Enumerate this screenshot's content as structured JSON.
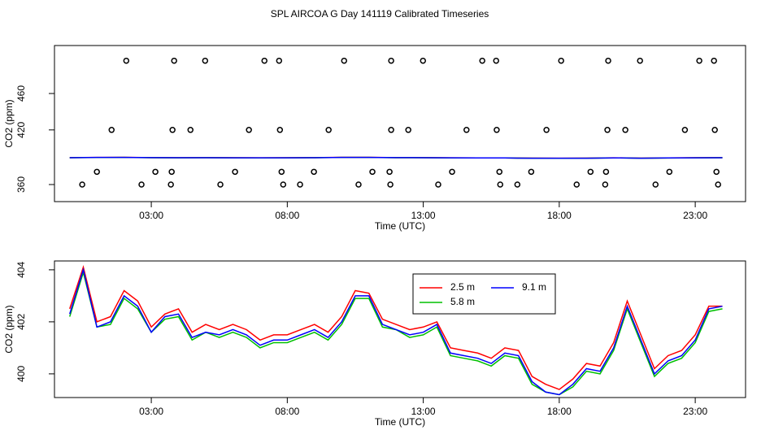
{
  "title": "SPL AIRCOA G  Day 141119  Calibrated Timeseries",
  "chart_data": [
    {
      "type": "line",
      "xlabel": "Time (UTC)",
      "ylabel": "CO2 (ppm)",
      "xlim": [
        -0.56,
        24.85
      ],
      "ylim": [
        341.25,
        512.7
      ],
      "xticks": [
        {
          "value": 3,
          "label": "03:00"
        },
        {
          "value": 8,
          "label": "08:00"
        },
        {
          "value": 13,
          "label": "13:00"
        },
        {
          "value": 18,
          "label": "18:00"
        },
        {
          "value": 23,
          "label": "23:00"
        }
      ],
      "yticks": [
        360,
        420,
        460
      ],
      "x": [
        0,
        1,
        2,
        3,
        4,
        5,
        6,
        7,
        8,
        9,
        10,
        11,
        12,
        13,
        14,
        15,
        16,
        17,
        18,
        19,
        20,
        21,
        22,
        23,
        24
      ],
      "series": [
        {
          "color": "#ff0000",
          "values": [
            389.6,
            389.8,
            389.9,
            389.6,
            389.5,
            389.6,
            389.5,
            389.4,
            389.5,
            389.6,
            389.9,
            389.9,
            389.6,
            389.6,
            389.4,
            389.3,
            389.3,
            389.0,
            388.9,
            389.0,
            389.4,
            389.0,
            389.2,
            389.5,
            389.6
          ]
        },
        {
          "color": "#00c000",
          "values": [
            389.5,
            389.7,
            389.8,
            389.5,
            389.4,
            389.5,
            389.4,
            389.3,
            389.4,
            389.5,
            389.8,
            389.8,
            389.5,
            389.5,
            389.3,
            389.2,
            389.2,
            388.9,
            388.8,
            388.9,
            389.3,
            388.9,
            389.1,
            389.4,
            389.5
          ]
        },
        {
          "color": "#0000ff",
          "values": [
            389.5,
            389.8,
            389.8,
            389.6,
            389.5,
            389.5,
            389.4,
            389.4,
            389.4,
            389.5,
            389.8,
            389.8,
            389.6,
            389.5,
            389.4,
            389.2,
            389.2,
            388.9,
            388.9,
            388.9,
            389.3,
            388.9,
            389.2,
            389.4,
            389.5
          ]
        },
        {
          "style": "points",
          "color": "#000000",
          "x": [
            2.08,
            3.84,
            4.98,
            7.16,
            7.7,
            10.09,
            11.82,
            12.99,
            15.17,
            15.68,
            18.07,
            19.8,
            20.97,
            23.15,
            23.69,
            1.54,
            3.78,
            4.44,
            6.59,
            7.73,
            9.52,
            11.82,
            12.45,
            14.59,
            15.7,
            17.53,
            19.77,
            20.43,
            22.62,
            23.72,
            1.0,
            3.15,
            3.75,
            6.08,
            7.79,
            8.98,
            11.13,
            11.76,
            14.06,
            15.8,
            16.97,
            19.15,
            19.72,
            22.05,
            23.78,
            0.46,
            2.64,
            3.72,
            5.54,
            7.85,
            8.47,
            10.62,
            11.79,
            13.55,
            15.83,
            16.46,
            18.64,
            19.69,
            21.54,
            23.84
          ],
          "values": [
            496,
            496,
            496,
            496,
            496,
            496,
            496,
            496,
            496,
            496,
            496,
            496,
            496,
            496,
            496,
            420,
            420,
            420,
            420,
            420,
            420,
            420,
            420,
            420,
            420,
            420,
            420,
            420,
            420,
            420,
            374,
            374,
            374,
            374,
            374,
            374,
            374,
            374,
            374,
            374,
            374,
            374,
            374,
            374,
            374,
            360,
            360,
            360,
            360,
            360,
            360,
            360,
            360,
            360,
            360,
            360,
            360,
            360,
            360,
            360
          ]
        }
      ]
    },
    {
      "type": "line",
      "xlabel": "Time (UTC)",
      "ylabel": "CO2 (ppm)",
      "xlim": [
        -0.56,
        24.85
      ],
      "ylim": [
        399.09,
        404.34
      ],
      "xticks": [
        {
          "value": 3,
          "label": "03:00"
        },
        {
          "value": 8,
          "label": "08:00"
        },
        {
          "value": 13,
          "label": "13:00"
        },
        {
          "value": 18,
          "label": "18:00"
        },
        {
          "value": 23,
          "label": "23:00"
        }
      ],
      "yticks": [
        400,
        402,
        404
      ],
      "legend": "top",
      "legend_ncol": 2,
      "x": [
        0,
        0.5,
        1,
        1.5,
        2,
        2.5,
        3,
        3.5,
        4,
        4.5,
        5,
        5.5,
        6,
        6.5,
        7,
        7.5,
        8,
        8.5,
        9,
        9.5,
        10,
        10.5,
        11,
        11.5,
        12,
        12.5,
        13,
        13.5,
        14,
        14.5,
        15,
        15.5,
        16,
        16.5,
        17,
        17.5,
        18,
        18.5,
        19,
        19.5,
        20,
        20.5,
        21,
        21.5,
        22,
        22.5,
        23,
        23.5,
        24
      ],
      "series": [
        {
          "name": "2.5 m",
          "color": "#ff0000",
          "values": [
            402.5,
            404.1,
            402.0,
            402.2,
            403.2,
            402.8,
            401.8,
            402.3,
            402.5,
            401.6,
            401.9,
            401.7,
            401.9,
            401.7,
            401.3,
            401.5,
            401.5,
            401.7,
            401.9,
            401.6,
            402.2,
            403.2,
            403.1,
            402.1,
            401.9,
            401.7,
            401.8,
            402.0,
            401.0,
            400.9,
            400.8,
            400.6,
            401.0,
            400.9,
            399.9,
            399.6,
            399.4,
            399.8,
            400.4,
            400.3,
            401.2,
            402.8,
            401.5,
            400.2,
            400.7,
            400.9,
            401.5,
            402.6,
            402.6
          ]
        },
        {
          "name": "5.8 m",
          "color": "#00c000",
          "values": [
            402.2,
            403.9,
            401.8,
            401.9,
            402.9,
            402.5,
            401.6,
            402.1,
            402.2,
            401.3,
            401.6,
            401.4,
            401.6,
            401.4,
            401.0,
            401.2,
            401.2,
            401.4,
            401.6,
            401.3,
            401.9,
            402.9,
            402.9,
            401.8,
            401.7,
            401.4,
            401.5,
            401.8,
            400.7,
            400.6,
            400.5,
            400.3,
            400.7,
            400.6,
            399.6,
            399.3,
            399.2,
            399.5,
            400.1,
            400.0,
            400.9,
            402.5,
            401.2,
            399.9,
            400.4,
            400.6,
            401.2,
            402.4,
            402.5
          ]
        },
        {
          "name": "9.1 m",
          "color": "#0000ff",
          "values": [
            402.3,
            404.0,
            401.8,
            402.0,
            403.0,
            402.6,
            401.6,
            402.2,
            402.3,
            401.4,
            401.6,
            401.5,
            401.7,
            401.5,
            401.1,
            401.3,
            401.3,
            401.5,
            401.7,
            401.4,
            402.0,
            403.0,
            403.0,
            401.9,
            401.7,
            401.5,
            401.6,
            401.9,
            400.8,
            400.7,
            400.6,
            400.4,
            400.8,
            400.7,
            399.7,
            399.3,
            399.2,
            399.6,
            400.2,
            400.1,
            401.0,
            402.6,
            401.3,
            400.0,
            400.5,
            400.7,
            401.3,
            402.5,
            402.6
          ]
        }
      ]
    }
  ]
}
